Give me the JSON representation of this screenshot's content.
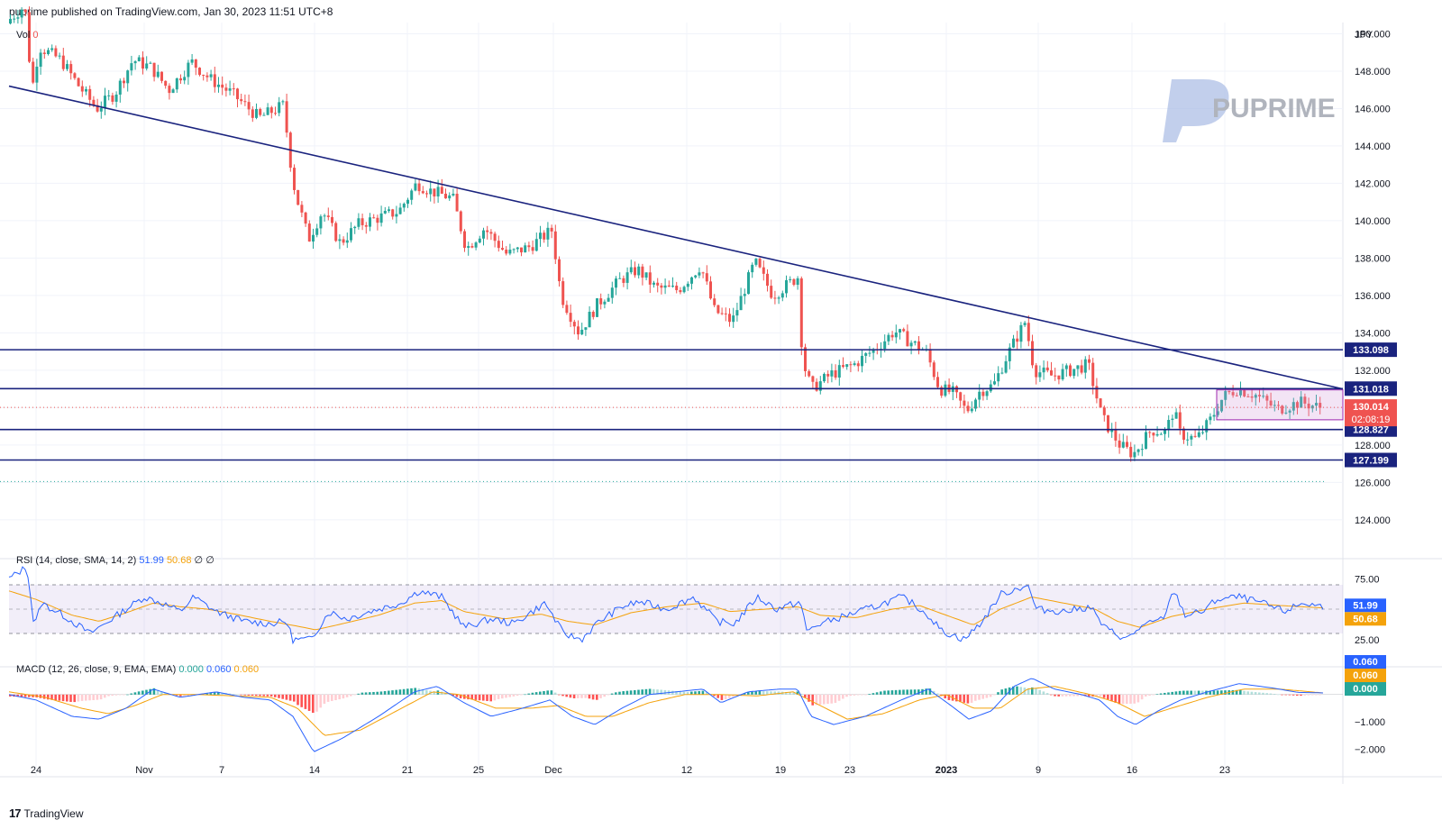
{
  "header": {
    "publisher_line": "puprime published on TradingView.com, Jan 30, 2023 11:51 UTC+8"
  },
  "watermark": {
    "text": "PUPRIME"
  },
  "footer": {
    "brand": "TradingView"
  },
  "volume_label": {
    "label": "Vol",
    "value": "0"
  },
  "colors": {
    "up": "#26a69a",
    "down": "#ef5350",
    "trendline": "#1a237e",
    "rsi": "#2962ff",
    "rsi_ma": "#f4a20b",
    "macd": "#2962ff",
    "signal": "#f4a20b"
  },
  "chart_data": [
    {
      "type": "candlestick",
      "currency": "JPY",
      "y_axis_ticks": [
        "150.000",
        "148.000",
        "146.000",
        "144.000",
        "142.000",
        "140.000",
        "138.000",
        "136.000",
        "134.000",
        "132.000",
        "130.000",
        "128.000",
        "126.000",
        "124.000"
      ],
      "ylim": [
        122.5,
        150.6
      ],
      "x_tick_labels": [
        "24",
        "Nov",
        "7",
        "14",
        "21",
        "25",
        "Dec",
        "12",
        "19",
        "23",
        "2023",
        "9",
        "16",
        "23"
      ],
      "anchors": [
        [
          0,
          150.2
        ],
        [
          30,
          151.5
        ],
        [
          38,
          147.0
        ],
        [
          46,
          149.3
        ],
        [
          70,
          148.6
        ],
        [
          90,
          147.2
        ],
        [
          110,
          146.0
        ],
        [
          130,
          146.8
        ],
        [
          150,
          148.6
        ],
        [
          170,
          148.2
        ],
        [
          190,
          147.0
        ],
        [
          215,
          148.5
        ],
        [
          235,
          147.6
        ],
        [
          260,
          146.8
        ],
        [
          290,
          145.5
        ],
        [
          318,
          146.2
        ],
        [
          322,
          144.0
        ],
        [
          330,
          141.5
        ],
        [
          345,
          139.0
        ],
        [
          360,
          140.5
        ],
        [
          380,
          138.8
        ],
        [
          400,
          139.8
        ],
        [
          425,
          140.2
        ],
        [
          445,
          140.5
        ],
        [
          465,
          142.0
        ],
        [
          480,
          141.6
        ],
        [
          505,
          141.2
        ],
        [
          520,
          138.5
        ],
        [
          540,
          139.6
        ],
        [
          565,
          138.2
        ],
        [
          590,
          138.6
        ],
        [
          615,
          139.5
        ],
        [
          625,
          136.0
        ],
        [
          645,
          134.0
        ],
        [
          665,
          135.5
        ],
        [
          690,
          136.8
        ],
        [
          710,
          137.4
        ],
        [
          730,
          136.4
        ],
        [
          755,
          136.3
        ],
        [
          780,
          137.6
        ],
        [
          795,
          135.2
        ],
        [
          815,
          134.6
        ],
        [
          840,
          137.8
        ],
        [
          860,
          136.0
        ],
        [
          888,
          137.0
        ],
        [
          893,
          132.5
        ],
        [
          903,
          131.0
        ],
        [
          925,
          131.8
        ],
        [
          950,
          132.3
        ],
        [
          975,
          133.2
        ],
        [
          995,
          134.1
        ],
        [
          1010,
          133.6
        ],
        [
          1030,
          133.0
        ],
        [
          1045,
          131.0
        ],
        [
          1060,
          130.8
        ],
        [
          1075,
          129.8
        ],
        [
          1090,
          130.9
        ],
        [
          1105,
          131.2
        ],
        [
          1120,
          132.8
        ],
        [
          1140,
          134.6
        ],
        [
          1150,
          132.0
        ],
        [
          1170,
          131.7
        ],
        [
          1190,
          132.0
        ],
        [
          1210,
          132.3
        ],
        [
          1225,
          129.5
        ],
        [
          1245,
          128.0
        ],
        [
          1260,
          127.5
        ],
        [
          1280,
          128.8
        ],
        [
          1296,
          128.7
        ],
        [
          1305,
          129.9
        ],
        [
          1312,
          128.6
        ],
        [
          1330,
          128.3
        ],
        [
          1345,
          129.3
        ],
        [
          1360,
          130.6
        ],
        [
          1375,
          131.0
        ],
        [
          1395,
          130.7
        ],
        [
          1420,
          129.9
        ],
        [
          1445,
          130.3
        ],
        [
          1468,
          130.0
        ]
      ],
      "last_price": "130.014",
      "countdown": "02:08:19",
      "horizontal_levels": [
        {
          "value": 133.098,
          "label": "133.098"
        },
        {
          "value": 131.018,
          "label": "131.018"
        },
        {
          "value": 128.827,
          "label": "128.827"
        },
        {
          "value": 127.199,
          "label": "127.199"
        }
      ],
      "trendline": {
        "points": [
          [
            10,
            147.2
          ],
          [
            1490,
            131.0
          ]
        ]
      },
      "range_box": {
        "x": [
          1350,
          1490
        ],
        "y": [
          129.35,
          130.95
        ]
      }
    },
    {
      "type": "line",
      "name": "RSI",
      "legend_title": "RSI (14, close, SMA, 14, 2)",
      "legend_values": [
        "51.99",
        "50.68",
        "∅",
        "∅"
      ],
      "bands": [
        30,
        50,
        70
      ],
      "ticks": [
        "75.00",
        "25.00"
      ],
      "ylim": [
        10,
        90
      ],
      "last_values": [
        "51.99",
        "50.68"
      ],
      "rsi_anchors": [
        [
          10,
          75
        ],
        [
          30,
          85
        ],
        [
          38,
          35
        ],
        [
          46,
          55
        ],
        [
          70,
          45
        ],
        [
          100,
          30
        ],
        [
          130,
          45
        ],
        [
          160,
          60
        ],
        [
          180,
          55
        ],
        [
          200,
          48
        ],
        [
          215,
          60
        ],
        [
          240,
          48
        ],
        [
          270,
          40
        ],
        [
          300,
          38
        ],
        [
          318,
          40
        ],
        [
          325,
          25
        ],
        [
          345,
          25
        ],
        [
          365,
          48
        ],
        [
          385,
          42
        ],
        [
          410,
          48
        ],
        [
          445,
          55
        ],
        [
          465,
          65
        ],
        [
          490,
          60
        ],
        [
          515,
          35
        ],
        [
          545,
          42
        ],
        [
          570,
          38
        ],
        [
          605,
          55
        ],
        [
          625,
          30
        ],
        [
          645,
          25
        ],
        [
          665,
          40
        ],
        [
          690,
          52
        ],
        [
          710,
          56
        ],
        [
          740,
          50
        ],
        [
          770,
          60
        ],
        [
          795,
          40
        ],
        [
          815,
          38
        ],
        [
          840,
          60
        ],
        [
          862,
          50
        ],
        [
          888,
          56
        ],
        [
          895,
          32
        ],
        [
          910,
          38
        ],
        [
          940,
          45
        ],
        [
          970,
          52
        ],
        [
          1000,
          60
        ],
        [
          1010,
          56
        ],
        [
          1030,
          45
        ],
        [
          1045,
          32
        ],
        [
          1070,
          25
        ],
        [
          1090,
          40
        ],
        [
          1110,
          62
        ],
        [
          1140,
          70
        ],
        [
          1150,
          50
        ],
        [
          1180,
          48
        ],
        [
          1210,
          52
        ],
        [
          1225,
          35
        ],
        [
          1250,
          25
        ],
        [
          1265,
          35
        ],
        [
          1290,
          42
        ],
        [
          1303,
          65
        ],
        [
          1315,
          45
        ],
        [
          1335,
          48
        ],
        [
          1350,
          58
        ],
        [
          1375,
          60
        ],
        [
          1400,
          55
        ],
        [
          1425,
          48
        ],
        [
          1445,
          55
        ],
        [
          1468,
          52
        ]
      ],
      "ma_anchors": [
        [
          10,
          65
        ],
        [
          40,
          58
        ],
        [
          80,
          45
        ],
        [
          110,
          40
        ],
        [
          140,
          47
        ],
        [
          170,
          55
        ],
        [
          200,
          52
        ],
        [
          230,
          50
        ],
        [
          260,
          46
        ],
        [
          300,
          40
        ],
        [
          330,
          36
        ],
        [
          350,
          33
        ],
        [
          380,
          38
        ],
        [
          420,
          45
        ],
        [
          460,
          55
        ],
        [
          490,
          57
        ],
        [
          515,
          48
        ],
        [
          560,
          42
        ],
        [
          600,
          46
        ],
        [
          630,
          40
        ],
        [
          660,
          37
        ],
        [
          700,
          47
        ],
        [
          740,
          52
        ],
        [
          780,
          55
        ],
        [
          810,
          48
        ],
        [
          850,
          50
        ],
        [
          885,
          52
        ],
        [
          910,
          45
        ],
        [
          950,
          43
        ],
        [
          990,
          50
        ],
        [
          1020,
          53
        ],
        [
          1050,
          45
        ],
        [
          1080,
          37
        ],
        [
          1110,
          50
        ],
        [
          1145,
          60
        ],
        [
          1180,
          55
        ],
        [
          1215,
          50
        ],
        [
          1240,
          40
        ],
        [
          1265,
          35
        ],
        [
          1300,
          44
        ],
        [
          1340,
          50
        ],
        [
          1380,
          55
        ],
        [
          1420,
          53
        ],
        [
          1468,
          51
        ]
      ]
    },
    {
      "type": "line",
      "name": "MACD",
      "legend_title": "MACD (12, 26, close, 9, EMA, EMA)",
      "legend_values": [
        "0.000",
        "0.060",
        "0.060"
      ],
      "ticks": [
        "−1.000",
        "−2.000"
      ],
      "ylim": [
        -2.35,
        0.95
      ],
      "last_values": [
        "0.060",
        "0.060",
        "0.000"
      ],
      "macd_anchors": [
        [
          10,
          0.0
        ],
        [
          40,
          -0.2
        ],
        [
          80,
          -0.8
        ],
        [
          110,
          -0.9
        ],
        [
          140,
          -0.5
        ],
        [
          170,
          0.2
        ],
        [
          200,
          -0.1
        ],
        [
          240,
          0.1
        ],
        [
          270,
          -0.1
        ],
        [
          300,
          -0.2
        ],
        [
          325,
          -0.8
        ],
        [
          348,
          -2.1
        ],
        [
          380,
          -1.6
        ],
        [
          420,
          -0.8
        ],
        [
          460,
          0.1
        ],
        [
          485,
          0.3
        ],
        [
          515,
          -0.3
        ],
        [
          545,
          -0.8
        ],
        [
          580,
          -0.5
        ],
        [
          610,
          -0.2
        ],
        [
          635,
          -0.8
        ],
        [
          660,
          -1.1
        ],
        [
          690,
          -0.5
        ],
        [
          720,
          0.0
        ],
        [
          750,
          0.1
        ],
        [
          780,
          0.2
        ],
        [
          800,
          -0.3
        ],
        [
          830,
          0.1
        ],
        [
          865,
          0.2
        ],
        [
          885,
          0.2
        ],
        [
          900,
          -0.8
        ],
        [
          925,
          -1.1
        ],
        [
          960,
          -0.8
        ],
        [
          1000,
          -0.2
        ],
        [
          1030,
          0.2
        ],
        [
          1055,
          -0.4
        ],
        [
          1075,
          -0.9
        ],
        [
          1100,
          -0.6
        ],
        [
          1125,
          0.3
        ],
        [
          1145,
          0.6
        ],
        [
          1170,
          0.2
        ],
        [
          1200,
          0.0
        ],
        [
          1220,
          -0.2
        ],
        [
          1240,
          -0.8
        ],
        [
          1260,
          -1.1
        ],
        [
          1285,
          -0.6
        ],
        [
          1310,
          -0.2
        ],
        [
          1340,
          0.1
        ],
        [
          1375,
          0.4
        ],
        [
          1410,
          0.25
        ],
        [
          1440,
          0.08
        ],
        [
          1468,
          0.06
        ]
      ],
      "signal_anchors": [
        [
          10,
          0.1
        ],
        [
          50,
          -0.1
        ],
        [
          90,
          -0.5
        ],
        [
          120,
          -0.7
        ],
        [
          150,
          -0.4
        ],
        [
          180,
          0.0
        ],
        [
          220,
          0.0
        ],
        [
          260,
          -0.05
        ],
        [
          300,
          -0.1
        ],
        [
          330,
          -0.5
        ],
        [
          360,
          -1.5
        ],
        [
          400,
          -1.3
        ],
        [
          440,
          -0.6
        ],
        [
          480,
          0.1
        ],
        [
          510,
          0.0
        ],
        [
          550,
          -0.5
        ],
        [
          590,
          -0.5
        ],
        [
          620,
          -0.4
        ],
        [
          650,
          -0.8
        ],
        [
          680,
          -0.8
        ],
        [
          720,
          -0.3
        ],
        [
          760,
          0.0
        ],
        [
          800,
          0.0
        ],
        [
          840,
          -0.05
        ],
        [
          880,
          0.1
        ],
        [
          910,
          -0.4
        ],
        [
          940,
          -0.9
        ],
        [
          980,
          -0.7
        ],
        [
          1020,
          -0.2
        ],
        [
          1050,
          0.0
        ],
        [
          1080,
          -0.5
        ],
        [
          1110,
          -0.5
        ],
        [
          1140,
          0.2
        ],
        [
          1170,
          0.3
        ],
        [
          1210,
          0.0
        ],
        [
          1240,
          -0.3
        ],
        [
          1270,
          -0.8
        ],
        [
          1300,
          -0.5
        ],
        [
          1340,
          -0.1
        ],
        [
          1380,
          0.2
        ],
        [
          1420,
          0.2
        ],
        [
          1468,
          0.06
        ]
      ],
      "zero_line": 0
    }
  ]
}
